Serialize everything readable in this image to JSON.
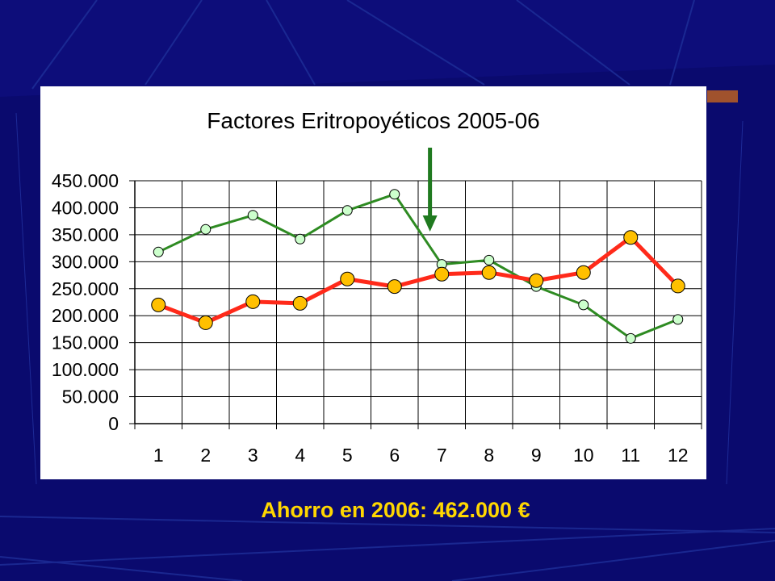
{
  "caption": "Ahorro en 2006: 462.000 €",
  "colors": {
    "background": "#0a0a6e",
    "series_2005": "#2e8b22",
    "series_2006": "#ff2a1a",
    "marker_2005": "#ccffcc",
    "marker_2006": "#ffc000",
    "arrow": "#1f7a1f",
    "accent_tab": "#a0522d"
  },
  "chart_data": {
    "type": "line",
    "title": "Factores Eritropoyéticos 2005-06",
    "xlabel": "",
    "ylabel": "",
    "categories": [
      "1",
      "2",
      "3",
      "4",
      "5",
      "6",
      "7",
      "8",
      "9",
      "10",
      "11",
      "12"
    ],
    "ylim": [
      0,
      450000
    ],
    "yticks": [
      "0",
      "50.000",
      "100.000",
      "150.000",
      "200.000",
      "250.000",
      "300.000",
      "350.000",
      "400.000",
      "450.000"
    ],
    "grid": true,
    "legend": "none",
    "series": [
      {
        "values": [
          318000,
          360000,
          386000,
          342000,
          395000,
          425000,
          295000,
          303000,
          254000,
          220000,
          158000,
          193000
        ]
      },
      {
        "values": [
          220000,
          187000,
          226000,
          223000,
          268000,
          254000,
          277000,
          280000,
          265000,
          280000,
          345000,
          255000
        ]
      }
    ],
    "annotations": [
      {
        "type": "arrow",
        "at_category": "7",
        "direction": "down"
      }
    ]
  }
}
